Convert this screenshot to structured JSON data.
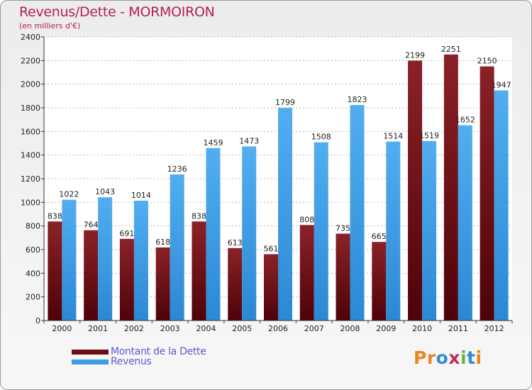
{
  "title": "Revenus/Dette - MORMOIRON",
  "subtitle": "(en milliers d'€)",
  "logo": {
    "letters": [
      "P",
      "r",
      "o",
      "x",
      "i",
      "t",
      "i"
    ],
    "colors": [
      "#e8851c",
      "#e8851c",
      "#2f8fd0",
      "#c42a5a",
      "#62b63a",
      "#2f8fd0",
      "#e8851c"
    ]
  },
  "chart_data": {
    "type": "bar",
    "categories": [
      "2000",
      "2001",
      "2002",
      "2003",
      "2004",
      "2005",
      "2006",
      "2007",
      "2008",
      "2009",
      "2010",
      "2011",
      "2012"
    ],
    "series": [
      {
        "name": "Montant de la Dette",
        "color": "#6e0e14",
        "values": [
          838,
          764,
          691,
          618,
          838,
          613,
          561,
          808,
          735,
          665,
          2199,
          2251,
          2150
        ]
      },
      {
        "name": "Revenus",
        "color": "#3f9de6",
        "values": [
          1022,
          1043,
          1014,
          1236,
          1459,
          1473,
          1799,
          1508,
          1823,
          1514,
          1519,
          1652,
          1947
        ]
      }
    ],
    "ylim": [
      0,
      2400
    ],
    "yticks": [
      0,
      200,
      400,
      600,
      800,
      1000,
      1200,
      1400,
      1600,
      1800,
      2000,
      2200,
      2400
    ],
    "xlabel": "",
    "ylabel": "",
    "grid": true,
    "legend_position": "bottom-left"
  }
}
